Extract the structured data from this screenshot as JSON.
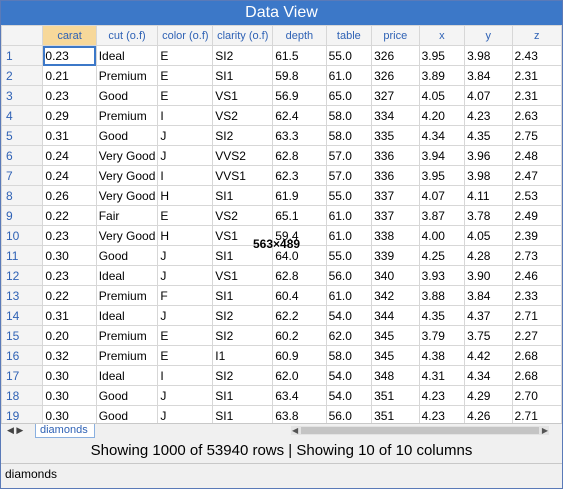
{
  "window": {
    "title": "Data View"
  },
  "columns": [
    "carat",
    "cut (o.f)",
    "color (o.f)",
    "clarity (o.f)",
    "depth",
    "table",
    "price",
    "x",
    "y",
    "z"
  ],
  "rows": [
    [
      "1",
      "0.23",
      "Ideal",
      "E",
      "SI2",
      "61.5",
      "55.0",
      "326",
      "3.95",
      "3.98",
      "2.43"
    ],
    [
      "2",
      "0.21",
      "Premium",
      "E",
      "SI1",
      "59.8",
      "61.0",
      "326",
      "3.89",
      "3.84",
      "2.31"
    ],
    [
      "3",
      "0.23",
      "Good",
      "E",
      "VS1",
      "56.9",
      "65.0",
      "327",
      "4.05",
      "4.07",
      "2.31"
    ],
    [
      "4",
      "0.29",
      "Premium",
      "I",
      "VS2",
      "62.4",
      "58.0",
      "334",
      "4.20",
      "4.23",
      "2.63"
    ],
    [
      "5",
      "0.31",
      "Good",
      "J",
      "SI2",
      "63.3",
      "58.0",
      "335",
      "4.34",
      "4.35",
      "2.75"
    ],
    [
      "6",
      "0.24",
      "Very Good",
      "J",
      "VVS2",
      "62.8",
      "57.0",
      "336",
      "3.94",
      "3.96",
      "2.48"
    ],
    [
      "7",
      "0.24",
      "Very Good",
      "I",
      "VVS1",
      "62.3",
      "57.0",
      "336",
      "3.95",
      "3.98",
      "2.47"
    ],
    [
      "8",
      "0.26",
      "Very Good",
      "H",
      "SI1",
      "61.9",
      "55.0",
      "337",
      "4.07",
      "4.11",
      "2.53"
    ],
    [
      "9",
      "0.22",
      "Fair",
      "E",
      "VS2",
      "65.1",
      "61.0",
      "337",
      "3.87",
      "3.78",
      "2.49"
    ],
    [
      "10",
      "0.23",
      "Very Good",
      "H",
      "VS1",
      "59.4",
      "61.0",
      "338",
      "4.00",
      "4.05",
      "2.39"
    ],
    [
      "11",
      "0.30",
      "Good",
      "J",
      "SI1",
      "64.0",
      "55.0",
      "339",
      "4.25",
      "4.28",
      "2.73"
    ],
    [
      "12",
      "0.23",
      "Ideal",
      "J",
      "VS1",
      "62.8",
      "56.0",
      "340",
      "3.93",
      "3.90",
      "2.46"
    ],
    [
      "13",
      "0.22",
      "Premium",
      "F",
      "SI1",
      "60.4",
      "61.0",
      "342",
      "3.88",
      "3.84",
      "2.33"
    ],
    [
      "14",
      "0.31",
      "Ideal",
      "J",
      "SI2",
      "62.2",
      "54.0",
      "344",
      "4.35",
      "4.37",
      "2.71"
    ],
    [
      "15",
      "0.20",
      "Premium",
      "E",
      "SI2",
      "60.2",
      "62.0",
      "345",
      "3.79",
      "3.75",
      "2.27"
    ],
    [
      "16",
      "0.32",
      "Premium",
      "E",
      "I1",
      "60.9",
      "58.0",
      "345",
      "4.38",
      "4.42",
      "2.68"
    ],
    [
      "17",
      "0.30",
      "Ideal",
      "I",
      "SI2",
      "62.0",
      "54.0",
      "348",
      "4.31",
      "4.34",
      "2.68"
    ],
    [
      "18",
      "0.30",
      "Good",
      "J",
      "SI1",
      "63.4",
      "54.0",
      "351",
      "4.23",
      "4.29",
      "2.70"
    ],
    [
      "19",
      "0.30",
      "Good",
      "J",
      "SI1",
      "63.8",
      "56.0",
      "351",
      "4.23",
      "4.26",
      "2.71"
    ]
  ],
  "sheet_tab": "diamonds",
  "status": "Showing 1000 of 53940 rows | Showing 10 of 10 columns",
  "bottom_label": "diamonds",
  "overlay_text": "563×489",
  "colors": {
    "title_bg": "#3c78c8",
    "header_text": "#2f62b5",
    "sorted_header": "#f7d89a"
  }
}
